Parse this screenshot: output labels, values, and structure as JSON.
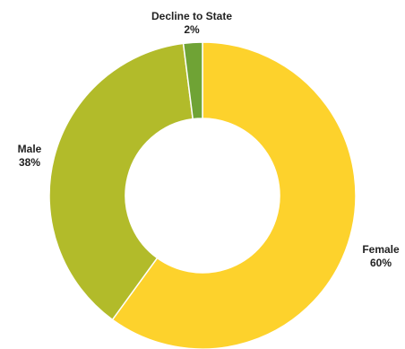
{
  "chart_data": {
    "type": "pie",
    "donut": true,
    "title": "",
    "slices": [
      {
        "label": "Female",
        "value": 60,
        "display": "60%",
        "color": "#FDD22C"
      },
      {
        "label": "Male",
        "value": 38,
        "display": "38%",
        "color": "#B2BB2A"
      },
      {
        "label": "Decline to State",
        "value": 2,
        "display": "2%",
        "color": "#6FA335"
      }
    ],
    "legend": "none"
  }
}
